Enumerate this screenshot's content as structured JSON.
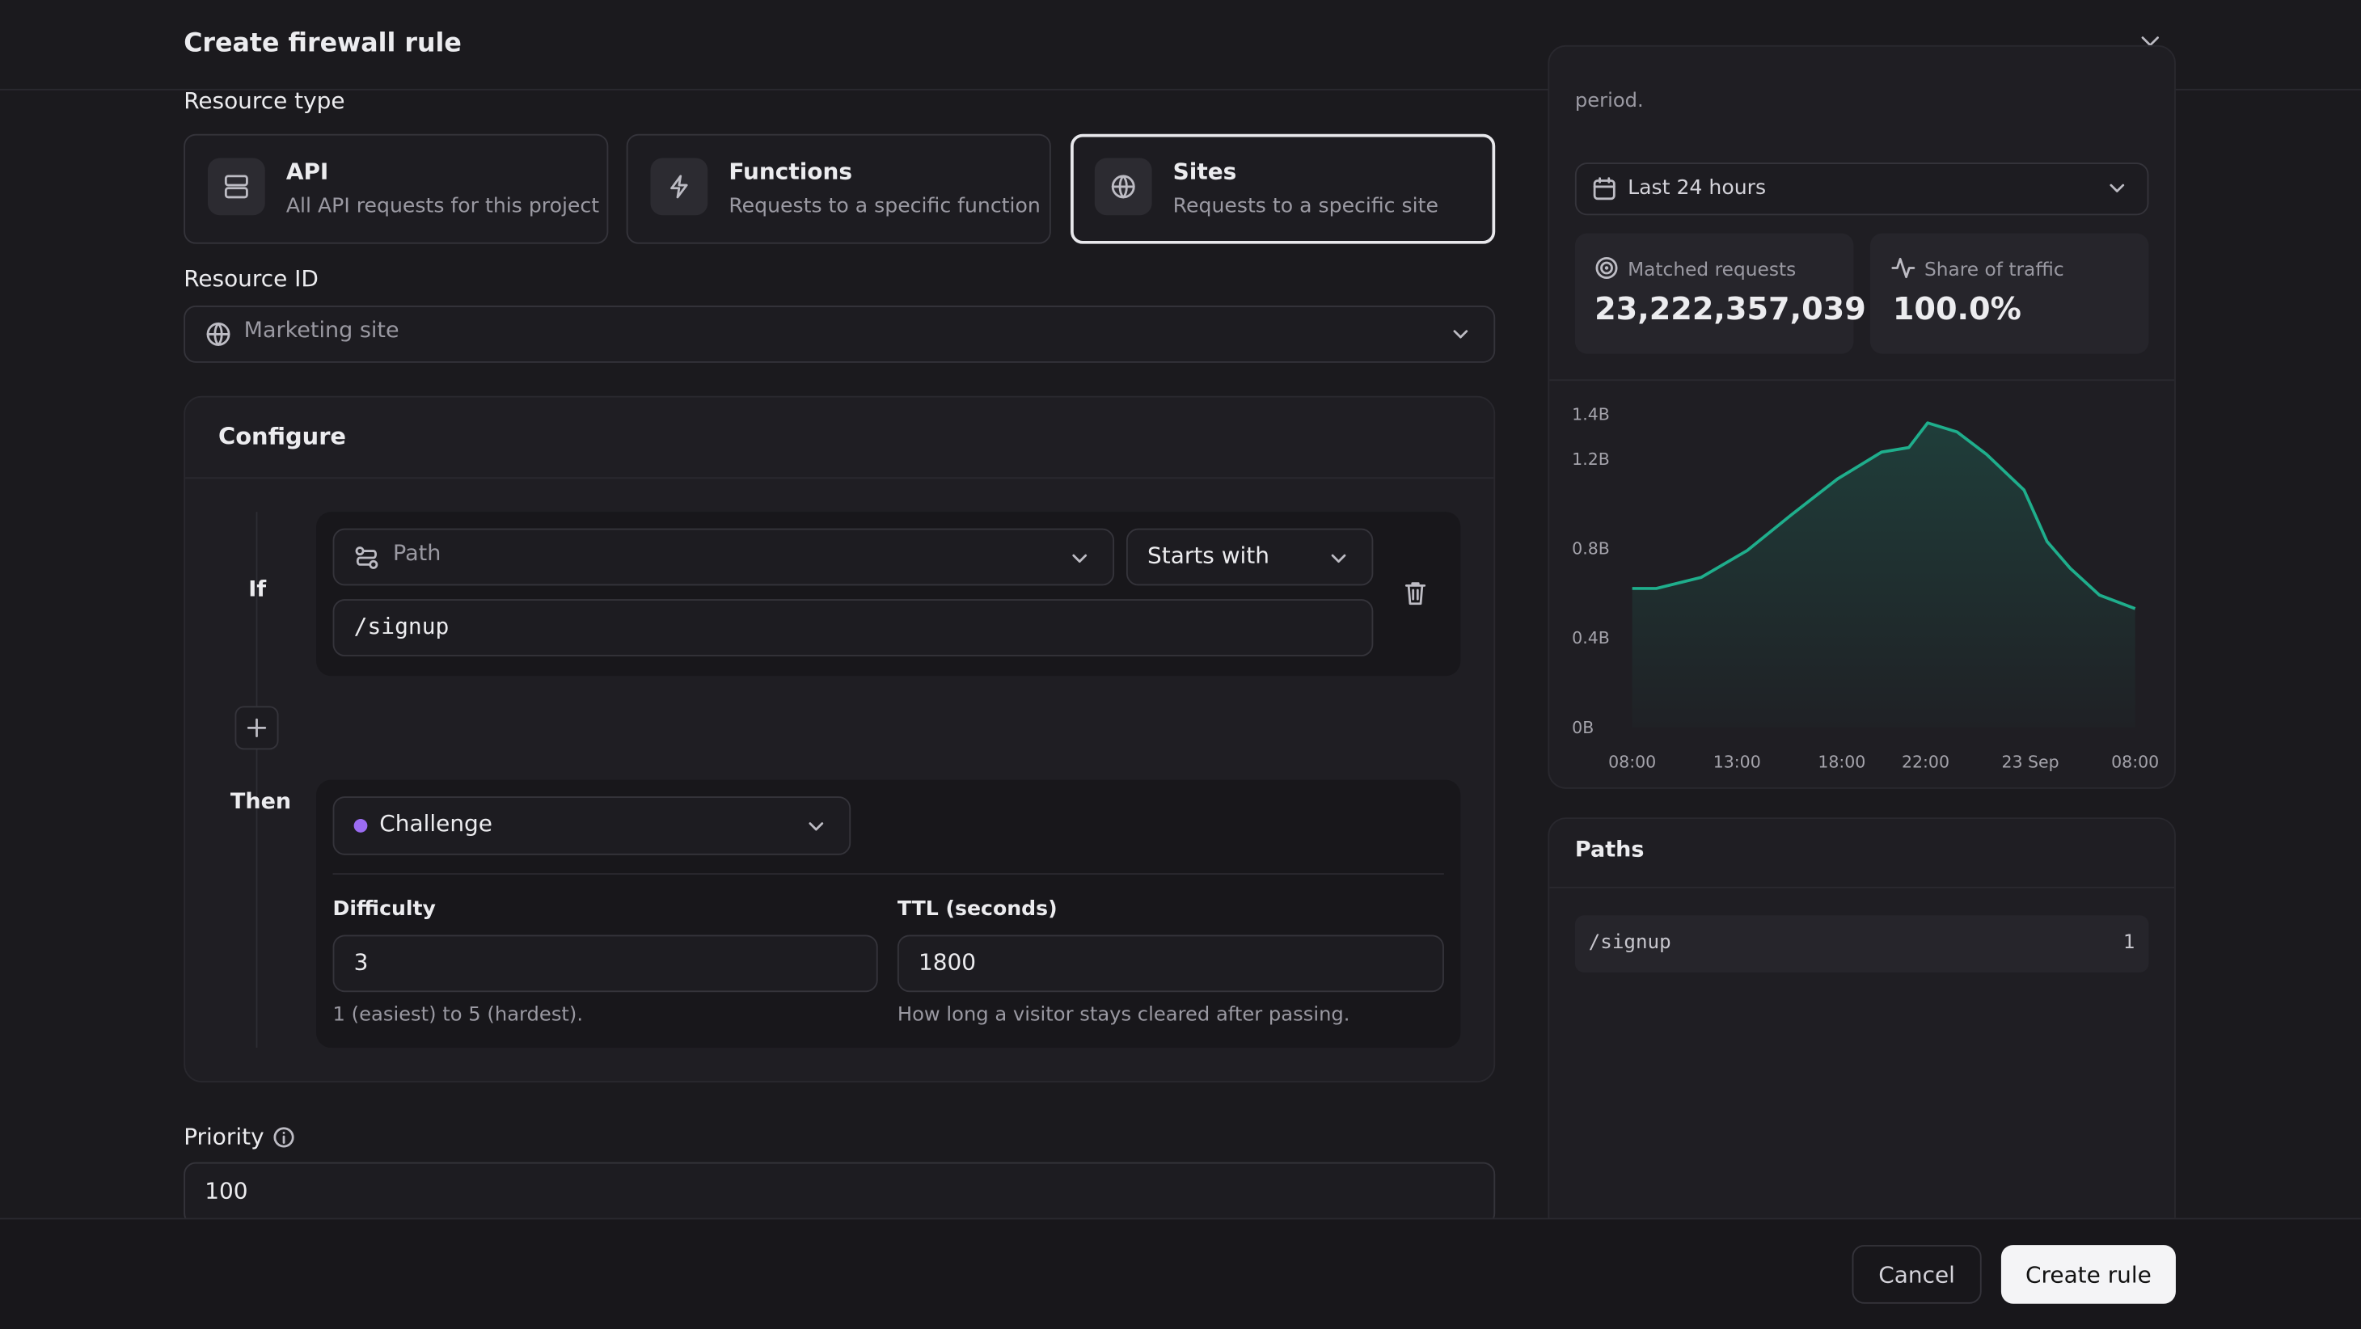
{
  "header": {
    "title": "Create firewall rule"
  },
  "resource_type": {
    "label": "Resource type",
    "options": [
      {
        "title": "API",
        "description": "All API requests for this project"
      },
      {
        "title": "Functions",
        "description": "Requests to a specific function"
      },
      {
        "title": "Sites",
        "description": "Requests to a specific site"
      }
    ]
  },
  "resource_id": {
    "label": "Resource ID",
    "value": "Marketing site"
  },
  "configure": {
    "title": "Configure",
    "if_label": "If",
    "field": "Path",
    "operator": "Starts with",
    "value": "/signup",
    "then_label": "Then",
    "action": "Challenge",
    "difficulty": {
      "label": "Difficulty",
      "value": "3",
      "hint": "1 (easiest) to 5 (hardest)."
    },
    "ttl": {
      "label": "TTL (seconds)",
      "value": "1800",
      "hint": "How long a visitor stays cleared after passing."
    }
  },
  "priority": {
    "label": "Priority",
    "value": "100"
  },
  "side": {
    "note": "period.",
    "range": "Last 24 hours",
    "stats": [
      {
        "label": "Matched requests",
        "value": "23,222,357,039"
      },
      {
        "label": "Share of traffic",
        "value": "100.0%"
      }
    ]
  },
  "chart_data": {
    "type": "line",
    "x": [
      0,
      1.15,
      3.3,
      5.5,
      7.6,
      9.8,
      11.9,
      13.2,
      14.1,
      15.5,
      16.9,
      18.7,
      19.8,
      20.9,
      22.3,
      24
    ],
    "series": [
      {
        "name": "Matched requests",
        "color": "#1fae8c",
        "values": [
          0.62,
          0.62,
          0.67,
          0.79,
          0.95,
          1.11,
          1.23,
          1.25,
          1.36,
          1.32,
          1.22,
          1.06,
          0.83,
          0.71,
          0.59,
          0.53
        ]
      }
    ],
    "xlim": [
      0,
      24
    ],
    "xticks": [
      {
        "value": 0,
        "label": "08:00"
      },
      {
        "value": 5,
        "label": "13:00"
      },
      {
        "value": 10,
        "label": "18:00"
      },
      {
        "value": 14,
        "label": "22:00"
      },
      {
        "value": 19,
        "label": "23 Sep"
      },
      {
        "value": 24,
        "label": "08:00"
      }
    ],
    "ylim": [
      0,
      1.4
    ],
    "yticks": [
      {
        "value": 0,
        "label": "0B"
      },
      {
        "value": 0.4,
        "label": "0.4B"
      },
      {
        "value": 0.8,
        "label": "0.8B"
      },
      {
        "value": 1.2,
        "label": "1.2B"
      },
      {
        "value": 1.4,
        "label": "1.4B"
      }
    ]
  },
  "paths": {
    "title": "Paths",
    "rows": [
      {
        "path": "/signup",
        "count": "1"
      }
    ]
  },
  "footer": {
    "cancel": "Cancel",
    "submit": "Create rule"
  }
}
